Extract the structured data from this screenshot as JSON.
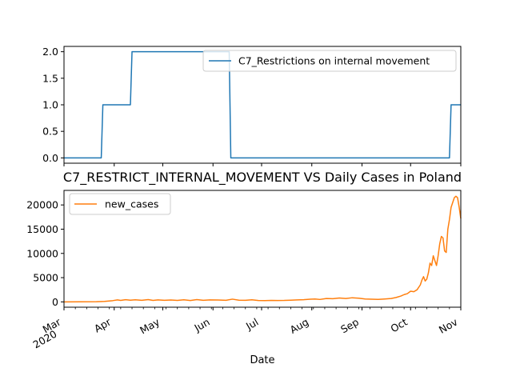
{
  "chart_data": [
    {
      "type": "line",
      "title": "",
      "xlabel": "",
      "ylabel": "",
      "x_range_days": [
        0,
        245
      ],
      "ylim": [
        -0.1,
        2.1
      ],
      "yticks": [
        0.0,
        0.5,
        1.0,
        1.5,
        2.0
      ],
      "ytick_labels": [
        "0.0",
        "0.5",
        "1.0",
        "1.5",
        "2.0"
      ],
      "legend": {
        "position": "top-right",
        "entries": [
          "C7_Restrictions on internal movement"
        ]
      },
      "series": [
        {
          "name": "C7_Restrictions on internal movement",
          "color": "#1f77b4",
          "step_points": [
            [
              0,
              0
            ],
            [
              23,
              0
            ],
            [
              24,
              1
            ],
            [
              41,
              1
            ],
            [
              42,
              2
            ],
            [
              102,
              2
            ],
            [
              103,
              0
            ],
            [
              238,
              0
            ],
            [
              239,
              1
            ],
            [
              245,
              1
            ]
          ]
        }
      ]
    },
    {
      "type": "line",
      "title": "C7_RESTRICT_INTERNAL_MOVEMENT VS Daily Cases in Poland",
      "xlabel": "Date",
      "ylabel": "",
      "x_range_days": [
        0,
        245
      ],
      "ylim": [
        -1100,
        23000
      ],
      "yticks": [
        0,
        5000,
        10000,
        15000,
        20000
      ],
      "ytick_labels": [
        "0",
        "5000",
        "10000",
        "15000",
        "20000"
      ],
      "xticks": [
        {
          "day": 0,
          "label": "Mar",
          "sub": "2020"
        },
        {
          "day": 31,
          "label": "Apr"
        },
        {
          "day": 61,
          "label": "May"
        },
        {
          "day": 92,
          "label": "Jun"
        },
        {
          "day": 122,
          "label": "Jul"
        },
        {
          "day": 153,
          "label": "Aug"
        },
        {
          "day": 184,
          "label": "Sep"
        },
        {
          "day": 214,
          "label": "Oct"
        },
        {
          "day": 245,
          "label": "Nov"
        }
      ],
      "legend": {
        "position": "top-left",
        "entries": [
          "new_cases"
        ]
      },
      "series": [
        {
          "name": "new_cases",
          "color": "#ff7f0e",
          "points": [
            [
              0,
              0
            ],
            [
              10,
              10
            ],
            [
              20,
              40
            ],
            [
              25,
              100
            ],
            [
              30,
              250
            ],
            [
              33,
              400
            ],
            [
              35,
              300
            ],
            [
              38,
              450
            ],
            [
              41,
              350
            ],
            [
              44,
              420
            ],
            [
              48,
              330
            ],
            [
              52,
              470
            ],
            [
              55,
              300
            ],
            [
              58,
              400
            ],
            [
              62,
              320
            ],
            [
              66,
              380
            ],
            [
              70,
              300
            ],
            [
              74,
              420
            ],
            [
              78,
              280
            ],
            [
              82,
              460
            ],
            [
              86,
              330
            ],
            [
              90,
              400
            ],
            [
              95,
              380
            ],
            [
              100,
              330
            ],
            [
              104,
              560
            ],
            [
              108,
              350
            ],
            [
              112,
              330
            ],
            [
              116,
              420
            ],
            [
              120,
              290
            ],
            [
              124,
              270
            ],
            [
              128,
              300
            ],
            [
              132,
              280
            ],
            [
              136,
              300
            ],
            [
              140,
              350
            ],
            [
              144,
              400
            ],
            [
              148,
              450
            ],
            [
              152,
              550
            ],
            [
              155,
              600
            ],
            [
              158,
              500
            ],
            [
              162,
              700
            ],
            [
              166,
              650
            ],
            [
              170,
              800
            ],
            [
              174,
              700
            ],
            [
              178,
              850
            ],
            [
              182,
              750
            ],
            [
              186,
              600
            ],
            [
              190,
              550
            ],
            [
              194,
              500
            ],
            [
              198,
              600
            ],
            [
              202,
              700
            ],
            [
              205,
              900
            ],
            [
              208,
              1200
            ],
            [
              210,
              1500
            ],
            [
              212,
              1700
            ],
            [
              214,
              2200
            ],
            [
              216,
              2100
            ],
            [
              218,
              2500
            ],
            [
              220,
              3500
            ],
            [
              221,
              4500
            ],
            [
              222,
              5200
            ],
            [
              223,
              4300
            ],
            [
              224,
              4700
            ],
            [
              225,
              6000
            ],
            [
              226,
              8000
            ],
            [
              227,
              7500
            ],
            [
              228,
              9500
            ],
            [
              229,
              8500
            ],
            [
              230,
              7500
            ],
            [
              231,
              9500
            ],
            [
              232,
              12000
            ],
            [
              233,
              13500
            ],
            [
              234,
              13200
            ],
            [
              235,
              10500
            ],
            [
              236,
              10200
            ],
            [
              237,
              15000
            ],
            [
              238,
              17000
            ],
            [
              239,
              19500
            ],
            [
              240,
              20500
            ],
            [
              241,
              21500
            ],
            [
              242,
              21800
            ],
            [
              243,
              21500
            ],
            [
              244,
              19500
            ],
            [
              245,
              17200
            ]
          ]
        }
      ]
    }
  ]
}
